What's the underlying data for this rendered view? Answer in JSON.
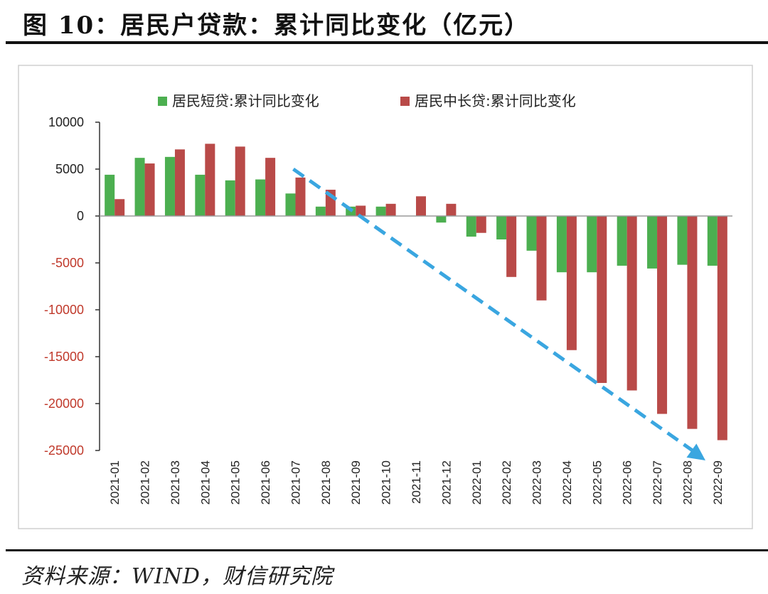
{
  "figure": {
    "title": "图 10：居民户贷款：累计同比变化（亿元）",
    "source": "资料来源：WIND，财信研究院"
  },
  "colors": {
    "short": "#4caf50",
    "long": "#b94a48",
    "arrow": "#3aa6e0",
    "axis": "#333333",
    "neg_tick": "#c0392b"
  },
  "chart_data": {
    "type": "bar",
    "title": "居民户贷款：累计同比变化（亿元）",
    "xlabel": "",
    "ylabel": "",
    "ylim": [
      -25000,
      10000
    ],
    "yticks": [
      10000,
      5000,
      0,
      -5000,
      -10000,
      -15000,
      -20000,
      -25000
    ],
    "ytick_labels": [
      "10000",
      "5000",
      "0",
      "-5000",
      "-10000",
      "-15000",
      "-20000",
      "-25000"
    ],
    "legend_position": "top",
    "categories": [
      "2021-01",
      "2021-02",
      "2021-03",
      "2021-04",
      "2021-05",
      "2021-06",
      "2021-07",
      "2021-08",
      "2021-09",
      "2021-10",
      "2021-11",
      "2021-12",
      "2022-01",
      "2022-02",
      "2022-03",
      "2022-04",
      "2022-05",
      "2022-06",
      "2022-07",
      "2022-08",
      "2022-09"
    ],
    "series": [
      {
        "name": "居民短贷:累计同比变化",
        "values": [
          4400,
          6200,
          6300,
          4400,
          3800,
          3900,
          2400,
          1000,
          1000,
          1000,
          0,
          -700,
          -2200,
          -2500,
          -3700,
          -6000,
          -6000,
          -5300,
          -5600,
          -5200,
          -5300
        ]
      },
      {
        "name": "居民中长贷:累计同比变化",
        "values": [
          1800,
          5600,
          7100,
          7700,
          7400,
          6200,
          4100,
          2800,
          1100,
          1300,
          2100,
          1300,
          -1800,
          -6500,
          -9000,
          -14300,
          -17800,
          -18600,
          -21100,
          -22700,
          -23900
        ]
      }
    ],
    "annotations": [
      {
        "type": "trend-arrow",
        "direction": "downward",
        "from_category": "2021-07",
        "to_category": "2022-09"
      }
    ]
  }
}
